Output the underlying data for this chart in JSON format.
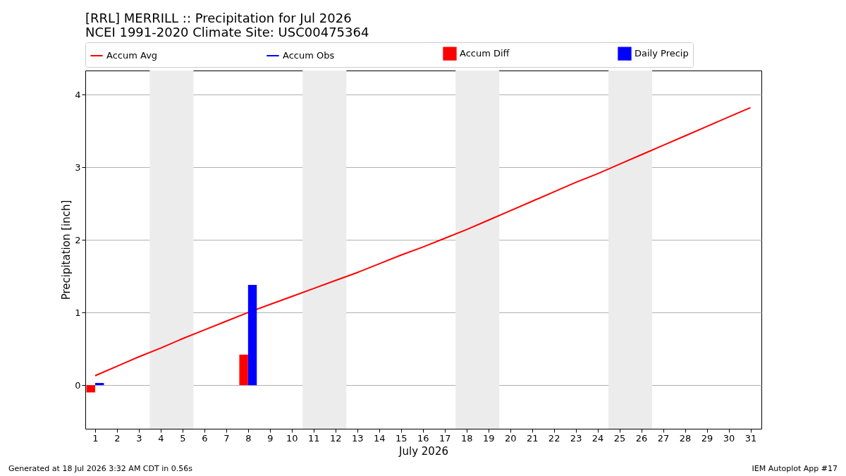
{
  "chart_data": {
    "type": "line",
    "title": "[RRL] MERRILL :: Precipitation for Jul 2026",
    "subtitle": "NCEI 1991-2020 Climate Site: USC00475364",
    "xlabel": "July 2026",
    "ylabel": "Precipitation [inch]",
    "x": [
      1,
      2,
      3,
      4,
      5,
      6,
      7,
      8,
      9,
      10,
      11,
      12,
      13,
      14,
      15,
      16,
      17,
      18,
      19,
      20,
      21,
      22,
      23,
      24,
      25,
      26,
      27,
      28,
      29,
      30,
      31
    ],
    "series": [
      {
        "name": "Accum Avg",
        "color": "#ff0000",
        "values": [
          0.13,
          0.26,
          0.39,
          0.51,
          0.64,
          0.76,
          0.88,
          1.0,
          1.11,
          1.22,
          1.33,
          1.44,
          1.55,
          1.67,
          1.79,
          1.9,
          2.02,
          2.14,
          2.27,
          2.4,
          2.53,
          2.66,
          2.79,
          2.91,
          3.04,
          3.17,
          3.3,
          3.43,
          3.56,
          3.69,
          3.82
        ]
      },
      {
        "name": "Accum Obs",
        "color": "#0000ff",
        "values": [
          null,
          null,
          null,
          null,
          null,
          null,
          null,
          null,
          null,
          null,
          null,
          null,
          null,
          null,
          null,
          null,
          null,
          null,
          null,
          null,
          null,
          null,
          null,
          null,
          null,
          null,
          null,
          null,
          null,
          null,
          null
        ]
      },
      {
        "name": "Accum Diff",
        "type": "bar",
        "color": "#ff0000",
        "values": [
          -0.1,
          null,
          null,
          null,
          null,
          null,
          null,
          0.42,
          null,
          null,
          null,
          null,
          null,
          null,
          null,
          null,
          null,
          null,
          null,
          null,
          null,
          null,
          null,
          null,
          null,
          null,
          null,
          null,
          null,
          null,
          null
        ]
      },
      {
        "name": "Daily Precip",
        "type": "bar",
        "color": "#0000ff",
        "values": [
          0.03,
          null,
          null,
          null,
          null,
          null,
          null,
          1.38,
          null,
          null,
          null,
          null,
          null,
          null,
          null,
          null,
          null,
          null,
          null,
          null,
          null,
          null,
          null,
          null,
          null,
          null,
          null,
          null,
          null,
          null,
          null
        ]
      }
    ],
    "xlim": [
      0.55,
      31.5
    ],
    "ylim": [
      -0.6,
      4.33
    ],
    "xticks": [
      1,
      2,
      3,
      4,
      5,
      6,
      7,
      8,
      9,
      10,
      11,
      12,
      13,
      14,
      15,
      16,
      17,
      18,
      19,
      20,
      21,
      22,
      23,
      24,
      25,
      26,
      27,
      28,
      29,
      30,
      31
    ],
    "yticks": [
      0,
      1,
      2,
      3,
      4
    ],
    "bands": [
      {
        "axis": "x",
        "from": 3.5,
        "to": 5.5,
        "color": "#ececec"
      },
      {
        "axis": "x",
        "from": 10.5,
        "to": 12.5,
        "color": "#ececec"
      },
      {
        "axis": "x",
        "from": 17.5,
        "to": 19.5,
        "color": "#ececec"
      },
      {
        "axis": "x",
        "from": 24.5,
        "to": 26.5,
        "color": "#ececec"
      }
    ],
    "grid": "y",
    "legend": "top",
    "annotations": [
      "Generated at 18 Jul 2026 3:32 AM CDT in 0.56s",
      "IEM Autoplot App #17"
    ]
  }
}
